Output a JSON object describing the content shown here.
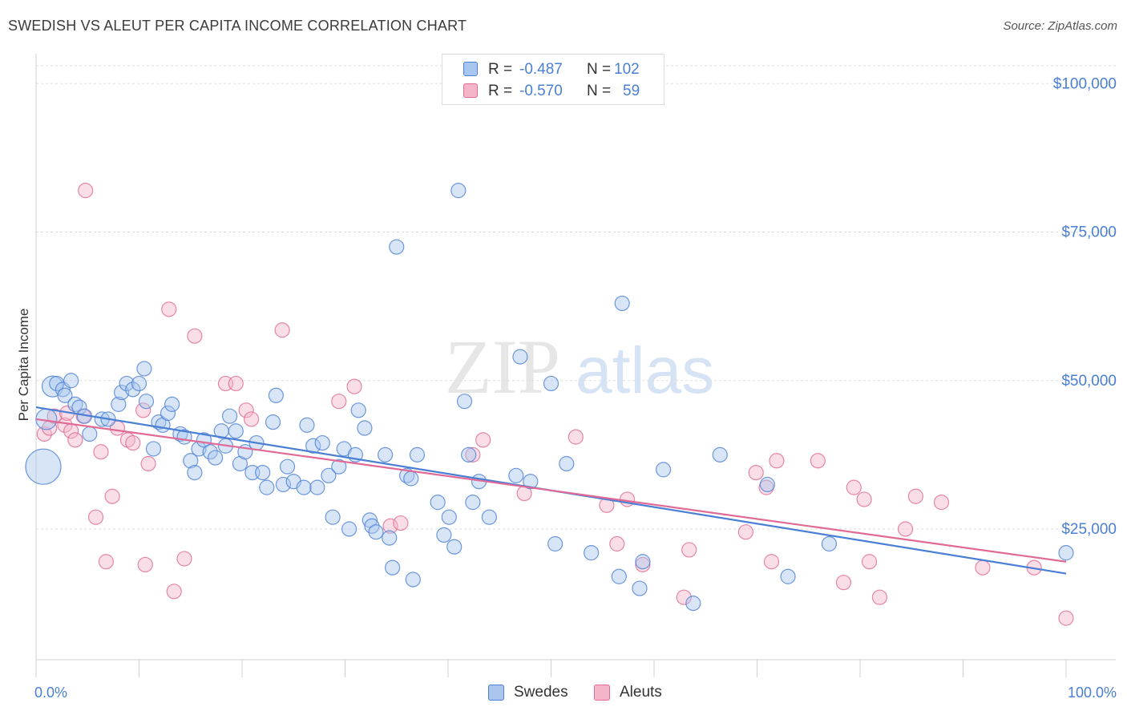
{
  "header": {
    "title": "SWEDISH VS ALEUT PER CAPITA INCOME CORRELATION CHART",
    "source": "Source: ZipAtlas.com"
  },
  "watermark": {
    "zip": "ZIP",
    "atlas": "atlas"
  },
  "colors": {
    "blue": "#4a7fd4",
    "blue_fill": "#a9c6ee",
    "pink": "#e06a95",
    "pink_fill": "#f5b5c9",
    "axis_text": "#4a7fd4",
    "grid": "#dddddd"
  },
  "stats": [
    {
      "r_label": "R = ",
      "r_value": "-0.487",
      "n_label": "N = ",
      "n_value": "102"
    },
    {
      "r_label": "R = ",
      "r_value": "-0.570",
      "n_label": "N = ",
      "n_value": "59"
    }
  ],
  "chart_data": {
    "type": "scatter",
    "title": "SWEDISH VS ALEUT PER CAPITA INCOME CORRELATION CHART",
    "xlabel": "",
    "ylabel": "Per Capita Income",
    "xlim": [
      0,
      100
    ],
    "ylim": [
      3000,
      108000
    ],
    "x_tick_labels": {
      "min": "0.0%",
      "max": "100.0%"
    },
    "y_ticks": [
      25000,
      50000,
      75000,
      100000
    ],
    "y_tick_labels": [
      "$25,000",
      "$50,000",
      "$75,000",
      "$100,000"
    ],
    "grid": true,
    "legend_position": "bottom-center",
    "series": [
      {
        "name": "Swedes",
        "color": "#4a7fd4",
        "trend": {
          "x": [
            0,
            100
          ],
          "y": [
            45500,
            17500
          ]
        },
        "points": [
          {
            "x": 0.7,
            "y": 35500,
            "s": 3
          },
          {
            "x": 1.0,
            "y": 43500,
            "s": 2
          },
          {
            "x": 1.6,
            "y": 49000,
            "s": 2
          },
          {
            "x": 2.0,
            "y": 49500,
            "s": 1
          },
          {
            "x": 2.6,
            "y": 48500,
            "s": 1
          },
          {
            "x": 2.8,
            "y": 47500,
            "s": 1
          },
          {
            "x": 3.4,
            "y": 50000,
            "s": 1
          },
          {
            "x": 3.8,
            "y": 46000,
            "s": 1
          },
          {
            "x": 4.2,
            "y": 45500,
            "s": 1
          },
          {
            "x": 4.7,
            "y": 44000,
            "s": 1
          },
          {
            "x": 5.2,
            "y": 41000,
            "s": 1
          },
          {
            "x": 6.4,
            "y": 43500,
            "s": 1
          },
          {
            "x": 7.0,
            "y": 43500,
            "s": 1
          },
          {
            "x": 8.0,
            "y": 46000,
            "s": 1
          },
          {
            "x": 8.3,
            "y": 48000,
            "s": 1
          },
          {
            "x": 8.8,
            "y": 49500,
            "s": 1
          },
          {
            "x": 9.4,
            "y": 48500,
            "s": 1
          },
          {
            "x": 10.0,
            "y": 49500,
            "s": 1
          },
          {
            "x": 10.5,
            "y": 52000,
            "s": 1
          },
          {
            "x": 10.7,
            "y": 46500,
            "s": 1
          },
          {
            "x": 11.4,
            "y": 38500,
            "s": 1
          },
          {
            "x": 11.9,
            "y": 43000,
            "s": 1
          },
          {
            "x": 12.3,
            "y": 42500,
            "s": 1
          },
          {
            "x": 12.8,
            "y": 44500,
            "s": 1
          },
          {
            "x": 13.2,
            "y": 46000,
            "s": 1
          },
          {
            "x": 14.0,
            "y": 41000,
            "s": 1
          },
          {
            "x": 14.4,
            "y": 40500,
            "s": 1
          },
          {
            "x": 15.0,
            "y": 36500,
            "s": 1
          },
          {
            "x": 15.4,
            "y": 34500,
            "s": 1
          },
          {
            "x": 15.8,
            "y": 38500,
            "s": 1
          },
          {
            "x": 16.3,
            "y": 40000,
            "s": 1
          },
          {
            "x": 16.9,
            "y": 38000,
            "s": 1
          },
          {
            "x": 17.4,
            "y": 37000,
            "s": 1
          },
          {
            "x": 18.0,
            "y": 41500,
            "s": 1
          },
          {
            "x": 18.4,
            "y": 39000,
            "s": 1
          },
          {
            "x": 18.8,
            "y": 44000,
            "s": 1
          },
          {
            "x": 19.4,
            "y": 41500,
            "s": 1
          },
          {
            "x": 19.8,
            "y": 36000,
            "s": 1
          },
          {
            "x": 20.3,
            "y": 38000,
            "s": 1
          },
          {
            "x": 21.0,
            "y": 34500,
            "s": 1
          },
          {
            "x": 21.4,
            "y": 39500,
            "s": 1
          },
          {
            "x": 22.0,
            "y": 34500,
            "s": 1
          },
          {
            "x": 22.4,
            "y": 32000,
            "s": 1
          },
          {
            "x": 23.0,
            "y": 43000,
            "s": 1
          },
          {
            "x": 23.3,
            "y": 47500,
            "s": 1
          },
          {
            "x": 24.0,
            "y": 32500,
            "s": 1
          },
          {
            "x": 24.4,
            "y": 35500,
            "s": 1
          },
          {
            "x": 25.0,
            "y": 33000,
            "s": 1
          },
          {
            "x": 26.0,
            "y": 32000,
            "s": 1
          },
          {
            "x": 26.3,
            "y": 42500,
            "s": 1
          },
          {
            "x": 26.9,
            "y": 39000,
            "s": 1
          },
          {
            "x": 27.3,
            "y": 32000,
            "s": 1
          },
          {
            "x": 27.8,
            "y": 39500,
            "s": 1
          },
          {
            "x": 28.4,
            "y": 34000,
            "s": 1
          },
          {
            "x": 28.8,
            "y": 27000,
            "s": 1
          },
          {
            "x": 29.4,
            "y": 35500,
            "s": 1
          },
          {
            "x": 29.9,
            "y": 38500,
            "s": 1
          },
          {
            "x": 30.4,
            "y": 25000,
            "s": 1
          },
          {
            "x": 31.0,
            "y": 37500,
            "s": 1
          },
          {
            "x": 31.3,
            "y": 45000,
            "s": 1
          },
          {
            "x": 31.9,
            "y": 42000,
            "s": 1
          },
          {
            "x": 32.4,
            "y": 26500,
            "s": 1
          },
          {
            "x": 32.6,
            "y": 25500,
            "s": 1
          },
          {
            "x": 33.0,
            "y": 24500,
            "s": 1
          },
          {
            "x": 33.9,
            "y": 37500,
            "s": 1
          },
          {
            "x": 34.3,
            "y": 23500,
            "s": 1
          },
          {
            "x": 34.6,
            "y": 18500,
            "s": 1
          },
          {
            "x": 35.0,
            "y": 72500,
            "s": 1
          },
          {
            "x": 36.0,
            "y": 34000,
            "s": 1
          },
          {
            "x": 36.4,
            "y": 33500,
            "s": 1
          },
          {
            "x": 36.6,
            "y": 16500,
            "s": 1
          },
          {
            "x": 37.0,
            "y": 37500,
            "s": 1
          },
          {
            "x": 39.0,
            "y": 29500,
            "s": 1
          },
          {
            "x": 39.6,
            "y": 24000,
            "s": 1
          },
          {
            "x": 40.1,
            "y": 27000,
            "s": 1
          },
          {
            "x": 40.6,
            "y": 22000,
            "s": 1
          },
          {
            "x": 41.0,
            "y": 82000,
            "s": 1
          },
          {
            "x": 41.6,
            "y": 46500,
            "s": 1
          },
          {
            "x": 42.0,
            "y": 37500,
            "s": 1
          },
          {
            "x": 42.4,
            "y": 29500,
            "s": 1
          },
          {
            "x": 43.0,
            "y": 33000,
            "s": 1
          },
          {
            "x": 44.0,
            "y": 27000,
            "s": 1
          },
          {
            "x": 46.6,
            "y": 34000,
            "s": 1
          },
          {
            "x": 47.0,
            "y": 54000,
            "s": 1
          },
          {
            "x": 48.0,
            "y": 33000,
            "s": 1
          },
          {
            "x": 50.0,
            "y": 49500,
            "s": 1
          },
          {
            "x": 50.4,
            "y": 22500,
            "s": 1
          },
          {
            "x": 51.5,
            "y": 36000,
            "s": 1
          },
          {
            "x": 53.9,
            "y": 21000,
            "s": 1
          },
          {
            "x": 56.6,
            "y": 17000,
            "s": 1
          },
          {
            "x": 56.9,
            "y": 63000,
            "s": 1
          },
          {
            "x": 58.6,
            "y": 15000,
            "s": 1
          },
          {
            "x": 58.9,
            "y": 19500,
            "s": 1
          },
          {
            "x": 60.9,
            "y": 35000,
            "s": 1
          },
          {
            "x": 63.8,
            "y": 12500,
            "s": 1
          },
          {
            "x": 66.4,
            "y": 37500,
            "s": 1
          },
          {
            "x": 71.0,
            "y": 32500,
            "s": 1
          },
          {
            "x": 73.0,
            "y": 17000,
            "s": 1
          },
          {
            "x": 77.0,
            "y": 22500,
            "s": 1
          },
          {
            "x": 100,
            "y": 21000,
            "s": 1
          }
        ]
      },
      {
        "name": "Aleuts",
        "color": "#e06a95",
        "trend": {
          "x": [
            0,
            100
          ],
          "y": [
            43500,
            19500
          ]
        },
        "points": [
          {
            "x": 0.8,
            "y": 41000,
            "s": 1
          },
          {
            "x": 1.3,
            "y": 42000,
            "s": 1
          },
          {
            "x": 1.8,
            "y": 44000,
            "s": 1
          },
          {
            "x": 2.8,
            "y": 42500,
            "s": 1
          },
          {
            "x": 3.0,
            "y": 44500,
            "s": 1
          },
          {
            "x": 3.4,
            "y": 41500,
            "s": 1
          },
          {
            "x": 3.8,
            "y": 40000,
            "s": 1
          },
          {
            "x": 4.6,
            "y": 44000,
            "s": 1
          },
          {
            "x": 4.8,
            "y": 82000,
            "s": 1
          },
          {
            "x": 5.8,
            "y": 27000,
            "s": 1
          },
          {
            "x": 6.3,
            "y": 38000,
            "s": 1
          },
          {
            "x": 6.8,
            "y": 19500,
            "s": 1
          },
          {
            "x": 7.4,
            "y": 30500,
            "s": 1
          },
          {
            "x": 7.9,
            "y": 42000,
            "s": 1
          },
          {
            "x": 8.9,
            "y": 40000,
            "s": 1
          },
          {
            "x": 9.4,
            "y": 39500,
            "s": 1
          },
          {
            "x": 10.4,
            "y": 45000,
            "s": 1
          },
          {
            "x": 10.6,
            "y": 19000,
            "s": 1
          },
          {
            "x": 10.9,
            "y": 36000,
            "s": 1
          },
          {
            "x": 12.9,
            "y": 62000,
            "s": 1
          },
          {
            "x": 13.4,
            "y": 14500,
            "s": 1
          },
          {
            "x": 14.4,
            "y": 20000,
            "s": 1
          },
          {
            "x": 15.4,
            "y": 57500,
            "s": 1
          },
          {
            "x": 18.4,
            "y": 49500,
            "s": 1
          },
          {
            "x": 19.4,
            "y": 49500,
            "s": 1
          },
          {
            "x": 20.4,
            "y": 45000,
            "s": 1
          },
          {
            "x": 20.9,
            "y": 43500,
            "s": 1
          },
          {
            "x": 23.9,
            "y": 58500,
            "s": 1
          },
          {
            "x": 29.4,
            "y": 46500,
            "s": 1
          },
          {
            "x": 30.9,
            "y": 49000,
            "s": 1
          },
          {
            "x": 34.4,
            "y": 25500,
            "s": 1
          },
          {
            "x": 35.4,
            "y": 26000,
            "s": 1
          },
          {
            "x": 43.4,
            "y": 40000,
            "s": 1
          },
          {
            "x": 47.4,
            "y": 31000,
            "s": 1
          },
          {
            "x": 52.4,
            "y": 40500,
            "s": 1
          },
          {
            "x": 55.4,
            "y": 29000,
            "s": 1
          },
          {
            "x": 56.4,
            "y": 22500,
            "s": 1
          },
          {
            "x": 57.4,
            "y": 30000,
            "s": 1
          },
          {
            "x": 58.9,
            "y": 19000,
            "s": 1
          },
          {
            "x": 62.9,
            "y": 13500,
            "s": 1
          },
          {
            "x": 63.4,
            "y": 21500,
            "s": 1
          },
          {
            "x": 68.9,
            "y": 24500,
            "s": 1
          },
          {
            "x": 69.9,
            "y": 34500,
            "s": 1
          },
          {
            "x": 70.9,
            "y": 32000,
            "s": 1
          },
          {
            "x": 71.4,
            "y": 19500,
            "s": 1
          },
          {
            "x": 71.9,
            "y": 36500,
            "s": 1
          },
          {
            "x": 75.9,
            "y": 36500,
            "s": 1
          },
          {
            "x": 78.4,
            "y": 16000,
            "s": 1
          },
          {
            "x": 79.4,
            "y": 32000,
            "s": 1
          },
          {
            "x": 80.4,
            "y": 30000,
            "s": 1
          },
          {
            "x": 80.9,
            "y": 19500,
            "s": 1
          },
          {
            "x": 81.9,
            "y": 13500,
            "s": 1
          },
          {
            "x": 84.4,
            "y": 25000,
            "s": 1
          },
          {
            "x": 85.4,
            "y": 30500,
            "s": 1
          },
          {
            "x": 87.9,
            "y": 29500,
            "s": 1
          },
          {
            "x": 91.9,
            "y": 18500,
            "s": 1
          },
          {
            "x": 96.9,
            "y": 18500,
            "s": 1
          },
          {
            "x": 100,
            "y": 10000,
            "s": 1
          },
          {
            "x": 42.4,
            "y": 37500,
            "s": 1
          }
        ]
      }
    ]
  }
}
